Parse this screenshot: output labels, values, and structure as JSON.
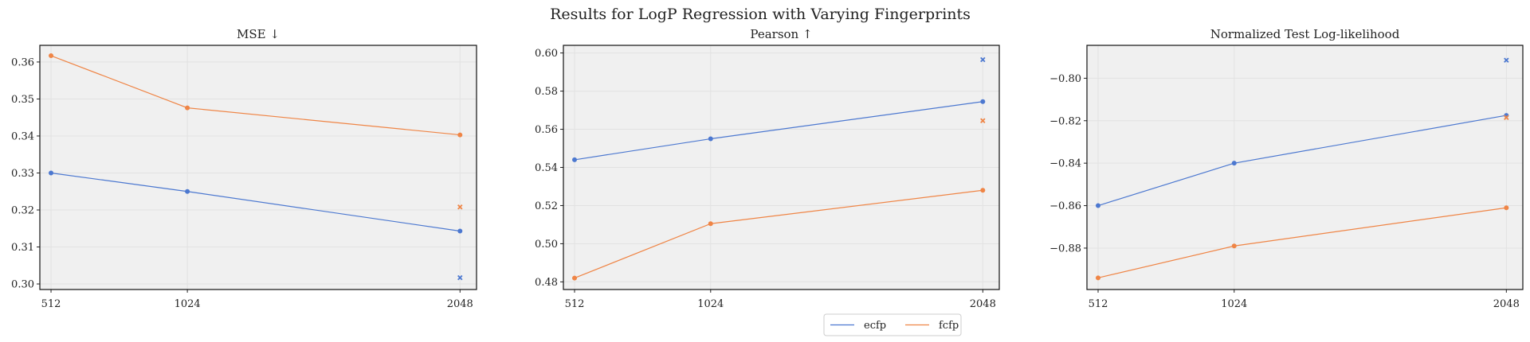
{
  "figure_title": "Results for LogP Regression with Varying Fingerprints",
  "colors": {
    "ecfp": "#4c78d0",
    "fcfp": "#ef8546",
    "panel_bg": "#f0f0f0",
    "grid": "#e2e2e2"
  },
  "legend": {
    "placement": "bottom-center",
    "entries": [
      "ecfp",
      "fcfp"
    ]
  },
  "chart_data": [
    {
      "type": "line",
      "title": "MSE ↓",
      "x": [
        512,
        1024,
        2048
      ],
      "x_tick_labels": [
        "512",
        "1024",
        "2048"
      ],
      "xlim": [
        470,
        2110
      ],
      "ylim": [
        0.2985,
        0.3645
      ],
      "y_ticks": [
        0.3,
        0.31,
        0.32,
        0.33,
        0.34,
        0.35,
        0.36
      ],
      "y_tick_labels": [
        "0.30",
        "0.31",
        "0.32",
        "0.33",
        "0.34",
        "0.35",
        "0.36"
      ],
      "grid": true,
      "series": [
        {
          "name": "ecfp",
          "values": [
            0.33,
            0.325,
            0.3143
          ],
          "extra_marker": {
            "x": 2048,
            "y": 0.3017
          }
        },
        {
          "name": "fcfp",
          "values": [
            0.3617,
            0.3476,
            0.3403
          ],
          "extra_marker": {
            "x": 2048,
            "y": 0.3208
          }
        }
      ]
    },
    {
      "type": "line",
      "title": "Pearson ↑",
      "x": [
        512,
        1024,
        2048
      ],
      "x_tick_labels": [
        "512",
        "1024",
        "2048"
      ],
      "xlim": [
        470,
        2110
      ],
      "ylim": [
        0.476,
        0.604
      ],
      "y_ticks": [
        0.48,
        0.5,
        0.52,
        0.54,
        0.56,
        0.58,
        0.6
      ],
      "y_tick_labels": [
        "0.48",
        "0.50",
        "0.52",
        "0.54",
        "0.56",
        "0.58",
        "0.60"
      ],
      "grid": true,
      "series": [
        {
          "name": "ecfp",
          "values": [
            0.544,
            0.555,
            0.5745
          ],
          "extra_marker": {
            "x": 2048,
            "y": 0.5965
          }
        },
        {
          "name": "fcfp",
          "values": [
            0.482,
            0.5105,
            0.528
          ],
          "extra_marker": {
            "x": 2048,
            "y": 0.5645
          }
        }
      ]
    },
    {
      "type": "line",
      "title": "Normalized Test Log-likelihood",
      "x": [
        512,
        1024,
        2048
      ],
      "x_tick_labels": [
        "512",
        "1024",
        "2048"
      ],
      "xlim": [
        470,
        2110
      ],
      "ylim": [
        -0.8995,
        -0.7845
      ],
      "y_ticks": [
        -0.88,
        -0.86,
        -0.84,
        -0.82,
        -0.8
      ],
      "y_tick_labels": [
        "−0.88",
        "−0.86",
        "−0.84",
        "−0.82",
        "−0.80"
      ],
      "grid": true,
      "series": [
        {
          "name": "ecfp",
          "values": [
            -0.86,
            -0.84,
            -0.8175
          ],
          "extra_marker": {
            "x": 2048,
            "y": -0.7915
          }
        },
        {
          "name": "fcfp",
          "values": [
            -0.894,
            -0.879,
            -0.861
          ],
          "extra_marker": {
            "x": 2048,
            "y": -0.8185
          }
        }
      ]
    }
  ]
}
